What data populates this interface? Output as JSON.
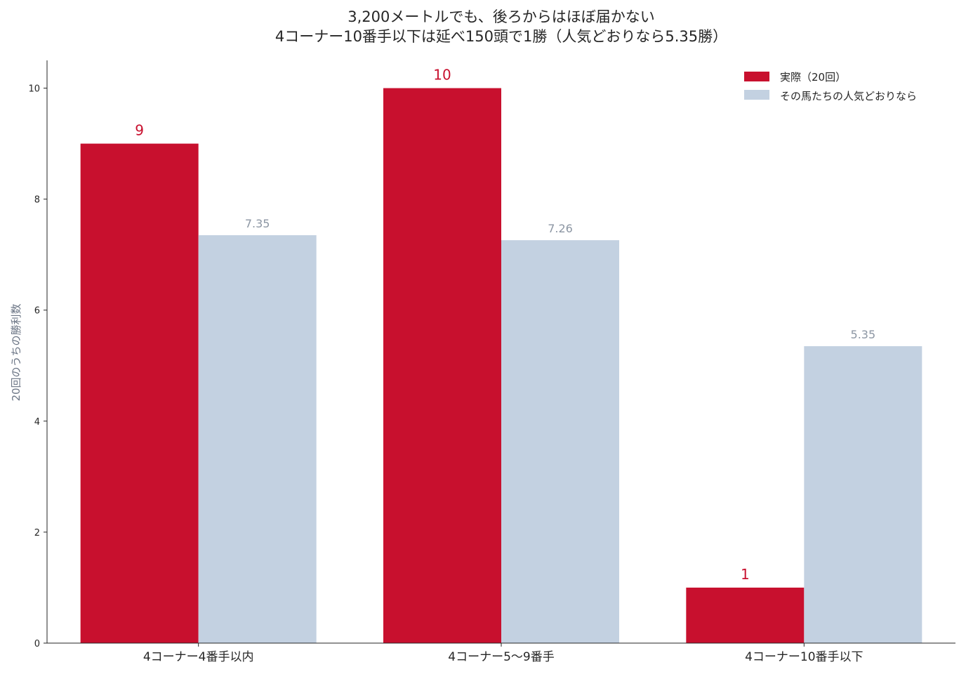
{
  "chart_data": {
    "type": "bar",
    "title_lines": [
      "3,200メートルでも、後ろからはほぼ届かない",
      "4コーナー10番手以下は延べ150頭で1勝（人気どおりなら5.35勝）"
    ],
    "ylabel": "20回のうちの勝利数",
    "xlabel": "",
    "categories": [
      "4コーナー4番手以内",
      "4コーナー5〜9番手",
      "4コーナー10番手以下"
    ],
    "series": [
      {
        "name": "実際（20回）",
        "values": [
          9,
          10,
          1
        ],
        "value_labels": [
          "9",
          "10",
          "1"
        ],
        "color": "#c8102e",
        "label_color": "#c8102e"
      },
      {
        "name": "その馬たちの人気どおりなら",
        "values": [
          7.35,
          7.26,
          5.35
        ],
        "value_labels": [
          "7.35",
          "7.26",
          "5.35"
        ],
        "color": "#c3d1e1",
        "label_color": "#8c96a3"
      }
    ],
    "ylim": [
      0,
      10.5
    ],
    "yticks": [
      0,
      2,
      4,
      6,
      8,
      10
    ],
    "grid": false,
    "legend_position": "top-right"
  }
}
